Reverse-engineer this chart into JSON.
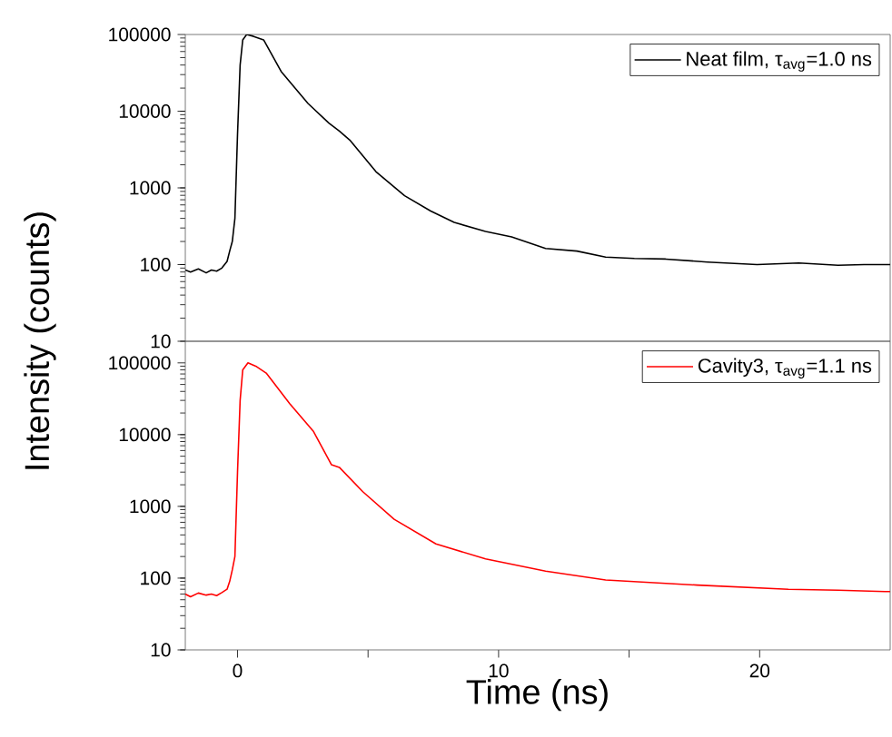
{
  "chart_data": [
    {
      "type": "line",
      "ylabel": "Intensity (counts)",
      "log": "y",
      "legend": "top right",
      "tick_labels": "y",
      "marker": "none",
      "xlim": [
        -2,
        25
      ],
      "ylim": [
        10,
        100000
      ],
      "xticks": [
        0,
        10,
        20
      ],
      "yticks": [
        10,
        100,
        1000,
        10000,
        100000
      ],
      "series": [
        {
          "name": "Neat film, τ$_{avg}$=1.0 ns",
          "color": "#000000",
          "x": [
            -2,
            -1.8,
            -1.5,
            -1.2,
            -1.0,
            -0.8,
            -0.6,
            -0.4,
            -0.3,
            -0.2,
            -0.1,
            0.0,
            0.1,
            0.2,
            0.35,
            0.6,
            1.0,
            1.67,
            2.7,
            3.5,
            3.9,
            4.3,
            5.3,
            6.4,
            7.4,
            8.3,
            9.5,
            10.5,
            11.8,
            13.0,
            14.1,
            15.2,
            16.4,
            18.0,
            19.9,
            21.5,
            23.0,
            24.0,
            25.0
          ],
          "values": [
            85,
            80,
            88,
            78,
            85,
            82,
            90,
            110,
            150,
            200,
            400,
            5000,
            40000,
            85000,
            100000,
            95000,
            85000,
            33000,
            12600,
            7000,
            5500,
            4200,
            1630,
            790,
            500,
            355,
            270,
            230,
            162,
            150,
            125,
            120,
            118,
            108,
            100,
            105,
            98,
            100,
            100
          ]
        }
      ]
    },
    {
      "type": "line",
      "xlabel": "Time (ns)",
      "log": "y",
      "legend": "top right",
      "marker": "none",
      "xlim": [
        -2,
        25
      ],
      "ylim": [
        10,
        200000
      ],
      "xticks": [
        0,
        {
          "value": 5,
          "label": null
        },
        10,
        {
          "value": 15,
          "label": null
        },
        20
      ],
      "yticks": [
        10,
        100,
        1000,
        10000,
        100000
      ],
      "series": [
        {
          "name": "Cavity3, τ$_{avg}$=1.1 ns",
          "color": "#ff0000",
          "x": [
            -2,
            -1.8,
            -1.5,
            -1.2,
            -1.0,
            -0.8,
            -0.6,
            -0.4,
            -0.3,
            -0.2,
            -0.1,
            0.0,
            0.1,
            0.2,
            0.4,
            0.7,
            1.1,
            2.0,
            2.9,
            3.6,
            3.9,
            4.8,
            6.0,
            7.6,
            9.5,
            11.8,
            14.1,
            17.6,
            21.1,
            23.0,
            24.8,
            25.0
          ],
          "values": [
            60,
            55,
            62,
            58,
            60,
            57,
            63,
            70,
            90,
            130,
            200,
            3000,
            30000,
            80000,
            100000,
            90000,
            72000,
            27000,
            11200,
            3800,
            3500,
            1600,
            660,
            300,
            185,
            125,
            94,
            80,
            70,
            68,
            65,
            65
          ]
        }
      ]
    }
  ]
}
